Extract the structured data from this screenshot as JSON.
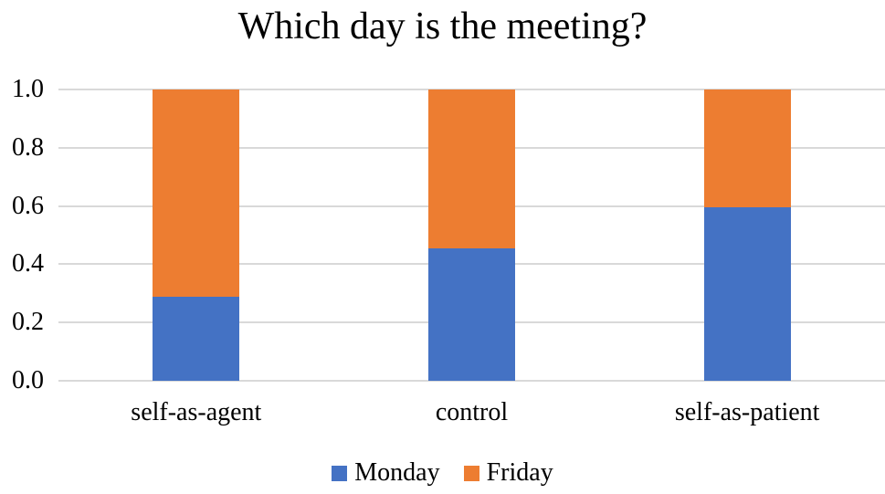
{
  "chart_data": {
    "type": "bar",
    "stacked": true,
    "title": "Which day is the meeting?",
    "categories": [
      "self-as-agent",
      "control",
      "self-as-patient"
    ],
    "series": [
      {
        "name": "Monday",
        "color": "#4472C4",
        "values": [
          0.29,
          0.455,
          0.595
        ]
      },
      {
        "name": "Friday",
        "color": "#ED7D31",
        "values": [
          0.71,
          0.545,
          0.405
        ]
      }
    ],
    "xlabel": "",
    "ylabel": "",
    "ylim": [
      0,
      1
    ],
    "yticks": [
      {
        "value": 1.0,
        "label": "1.0"
      },
      {
        "value": 0.8,
        "label": "0.8"
      },
      {
        "value": 0.6,
        "label": "0.6"
      },
      {
        "value": 0.4,
        "label": "0.4"
      },
      {
        "value": 0.2,
        "label": "0.2"
      },
      {
        "value": 0.0,
        "label": "0.0"
      }
    ],
    "grid": true,
    "gridline_color": "#D9D9D9",
    "background_color": "#FFFFFF",
    "text_color": "#000000",
    "legend_position": "bottom",
    "legend_entries": [
      "Monday",
      "Friday"
    ]
  }
}
